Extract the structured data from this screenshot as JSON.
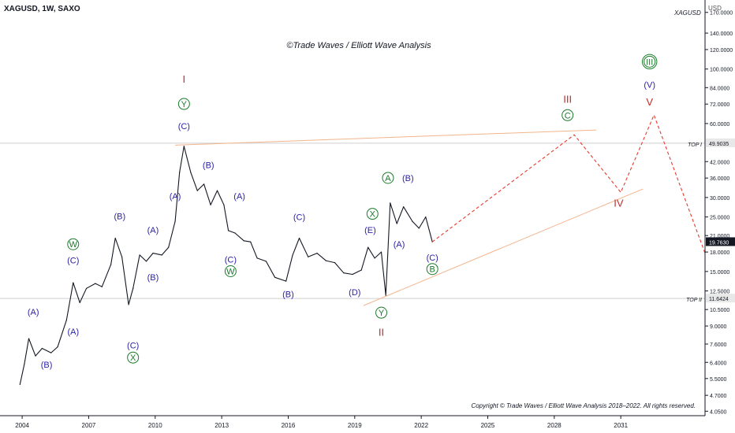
{
  "header": {
    "symbol_line": "XAGUSD, 1W, SAXO",
    "watermark": "XAGUSD",
    "currency": "USD",
    "subtitle": "©Trade Waves / Elliott Wave Analysis",
    "copyright": "Copyright © Trade Waves / Elliott Wave Analysis 2018–2022. All rights reserved."
  },
  "colors": {
    "price": "#131722",
    "wave_blue": "#2a1fa8",
    "wave_green": "#1b7a2a",
    "wave_red": "#c22b2b",
    "trend_line": "#f2b48a",
    "projection": "#e8392f",
    "hline": "#cfcfcf",
    "current_price_tag": "#131722"
  },
  "chart_data": {
    "type": "line",
    "y_scale": "log",
    "ylim": [
      4.0,
      180
    ],
    "xlim": [
      "2003-01",
      "2034-10"
    ],
    "x_ticks": [
      "2004",
      "2007",
      "2010",
      "2013",
      "2016",
      "2019",
      "2022",
      "2025",
      "2028",
      "2031"
    ],
    "y_ticks": [
      "170.0000",
      "140.0000",
      "120.0000",
      "100.0000",
      "84.0000",
      "72.0000",
      "60.0000",
      "42.0000",
      "36.0000",
      "30.0000",
      "25.0000",
      "21.0000",
      "18.0000",
      "15.0000",
      "12.5000",
      "10.5000",
      "9.0000",
      "7.6000",
      "6.4000",
      "5.5000",
      "4.7000",
      "4.0500"
    ],
    "series": [
      {
        "x": [
          2003.9,
          2004.1,
          2004.3,
          2004.6,
          2004.9,
          2005.3,
          2005.6,
          2006.0,
          2006.3,
          2006.6,
          2006.9,
          2007.3,
          2007.6,
          2008.0,
          2008.2,
          2008.5,
          2008.8,
          2009.0,
          2009.3,
          2009.6,
          2009.9,
          2010.3,
          2010.6,
          2010.9,
          2011.1,
          2011.3,
          2011.6,
          2011.9,
          2012.2,
          2012.5,
          2012.8,
          2013.1,
          2013.3,
          2013.6,
          2014.0,
          2014.3,
          2014.6,
          2015.0,
          2015.4,
          2015.9,
          2016.2,
          2016.5,
          2016.9,
          2017.3,
          2017.7,
          2018.1,
          2018.5,
          2018.9,
          2019.3,
          2019.6,
          2019.9,
          2020.2,
          2020.4,
          2020.6,
          2020.9,
          2021.2,
          2021.6,
          2021.9,
          2022.2,
          2022.5
        ],
        "y": [
          5.2,
          6.3,
          8.0,
          6.8,
          7.3,
          7.0,
          7.4,
          9.5,
          13.5,
          11.2,
          12.8,
          13.4,
          13.0,
          16.0,
          20.5,
          17.2,
          11.0,
          12.8,
          17.5,
          16.5,
          17.8,
          17.5,
          18.8,
          24.0,
          38.0,
          48.5,
          38.0,
          32.0,
          34.0,
          28.0,
          32.0,
          28.0,
          22.0,
          21.5,
          20.0,
          19.8,
          17.0,
          16.5,
          14.2,
          13.7,
          17.5,
          20.5,
          17.2,
          17.8,
          16.6,
          16.3,
          14.8,
          14.6,
          15.2,
          18.8,
          17.0,
          18.0,
          12.0,
          28.5,
          23.5,
          27.5,
          24.0,
          22.5,
          25.0,
          19.8
        ]
      }
    ],
    "current_price": "19.7630",
    "levels": [
      {
        "label": "TOP I",
        "value": "49.9035"
      },
      {
        "label": "TOP II",
        "value": "11.6424"
      }
    ],
    "trend_lines": [
      {
        "x": [
          2010.9,
          2029.9
        ],
        "y": [
          49.0,
          56.5
        ]
      },
      {
        "x": [
          2019.4,
          2032.0
        ],
        "y": [
          10.9,
          32.5
        ]
      }
    ],
    "projection": {
      "x": [
        2022.5,
        2028.9,
        2031.0,
        2032.5,
        2034.8
      ],
      "y": [
        19.8,
        54.0,
        31.5,
        65.0,
        17.8
      ]
    },
    "wave_labels": [
      {
        "text": "I",
        "style": "red",
        "x": 2011.3,
        "y": 88.0
      },
      {
        "text": "Y",
        "style": "green-circle",
        "x": 2011.3,
        "y": 70.0
      },
      {
        "text": "(C)",
        "style": "blue",
        "x": 2011.3,
        "y": 57.0
      },
      {
        "text": "(A)",
        "style": "blue",
        "x": 2010.9,
        "y": 29.5
      },
      {
        "text": "(B)",
        "style": "blue",
        "x": 2012.4,
        "y": 39.5
      },
      {
        "text": "(A)",
        "style": "blue",
        "x": 2013.8,
        "y": 29.5
      },
      {
        "text": "(C)",
        "style": "blue",
        "x": 2013.4,
        "y": 16.3
      },
      {
        "text": "W",
        "style": "green-circle",
        "x": 2013.4,
        "y": 14.6
      },
      {
        "text": "(C)",
        "style": "blue",
        "x": 2016.5,
        "y": 24.3
      },
      {
        "text": "(B)",
        "style": "blue",
        "x": 2016.0,
        "y": 11.8
      },
      {
        "text": "(D)",
        "style": "blue",
        "x": 2019.0,
        "y": 12.0
      },
      {
        "text": "X",
        "style": "green-circle",
        "x": 2019.8,
        "y": 25.0
      },
      {
        "text": "(E)",
        "style": "blue",
        "x": 2019.7,
        "y": 21.5
      },
      {
        "text": "A",
        "style": "green-circle",
        "x": 2020.5,
        "y": 35.0
      },
      {
        "text": "(B)",
        "style": "blue",
        "x": 2021.4,
        "y": 35.0
      },
      {
        "text": "(A)",
        "style": "blue",
        "x": 2021.0,
        "y": 18.8
      },
      {
        "text": "(C)",
        "style": "blue",
        "x": 2022.5,
        "y": 16.6
      },
      {
        "text": "B",
        "style": "green-circle",
        "x": 2022.5,
        "y": 14.9
      },
      {
        "text": "Y",
        "style": "green-circle",
        "x": 2020.2,
        "y": 9.9
      },
      {
        "text": "II",
        "style": "red",
        "x": 2020.2,
        "y": 8.2
      },
      {
        "text": "(A)",
        "style": "blue",
        "x": 2004.5,
        "y": 10.0
      },
      {
        "text": "(A)",
        "style": "blue",
        "x": 2006.3,
        "y": 8.3
      },
      {
        "text": "(B)",
        "style": "blue",
        "x": 2005.1,
        "y": 6.1
      },
      {
        "text": "(C)",
        "style": "blue",
        "x": 2006.3,
        "y": 16.2
      },
      {
        "text": "W",
        "style": "green-circle",
        "x": 2006.3,
        "y": 18.8
      },
      {
        "text": "(B)",
        "style": "blue",
        "x": 2008.4,
        "y": 24.5
      },
      {
        "text": "(A)",
        "style": "blue",
        "x": 2009.9,
        "y": 21.5
      },
      {
        "text": "(B)",
        "style": "blue",
        "x": 2009.9,
        "y": 13.8
      },
      {
        "text": "(C)",
        "style": "blue",
        "x": 2009.0,
        "y": 7.3
      },
      {
        "text": "X",
        "style": "green-circle",
        "x": 2009.0,
        "y": 6.5
      },
      {
        "text": "III",
        "style": "red",
        "x": 2028.6,
        "y": 73.0
      },
      {
        "text": "C",
        "style": "green-circle",
        "x": 2028.6,
        "y": 63.0
      },
      {
        "text": "III",
        "style": "green-double-circle",
        "x": 2032.3,
        "y": 104.0
      },
      {
        "text": "(V)",
        "style": "blue",
        "x": 2032.3,
        "y": 84.0
      },
      {
        "text": "V",
        "style": "red",
        "x": 2032.3,
        "y": 71.0
      },
      {
        "text": "IV",
        "style": "red",
        "x": 2030.9,
        "y": 27.5
      }
    ]
  }
}
